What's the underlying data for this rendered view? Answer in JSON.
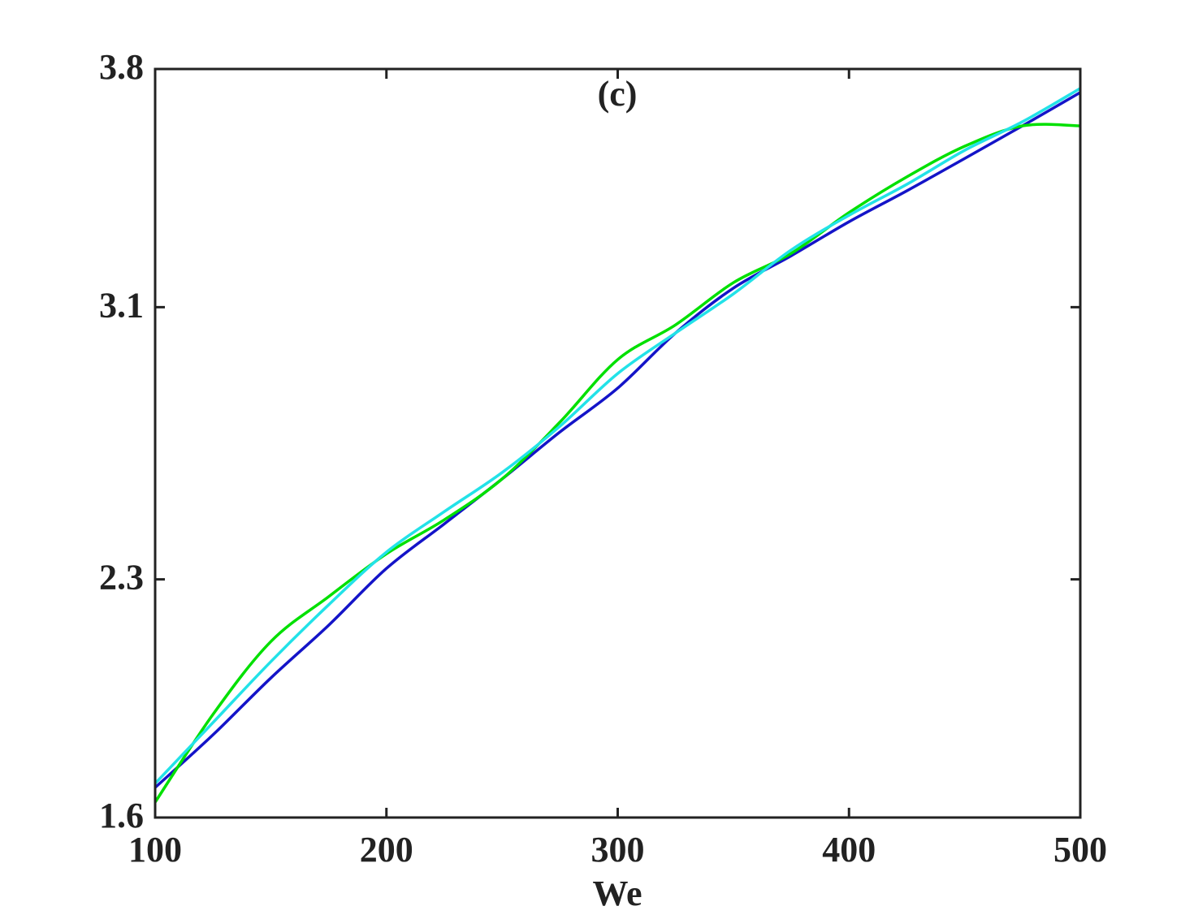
{
  "chart_data": {
    "type": "line",
    "title": "(c)",
    "x_label": "We",
    "x": [
      100,
      125,
      150,
      175,
      200,
      225,
      250,
      275,
      300,
      325,
      350,
      375,
      400,
      425,
      450,
      475,
      500
    ],
    "series": [
      {
        "color": "#1414c8",
        "values": [
          1.688,
          1.843,
          2.01,
          2.165,
          2.332,
          2.463,
          2.595,
          2.733,
          2.862,
          3.024,
          3.156,
          3.251,
          3.351,
          3.442,
          3.537,
          3.633,
          3.731
        ]
      },
      {
        "color": "#00e000",
        "values": [
          1.645,
          1.903,
          2.117,
          2.249,
          2.375,
          2.475,
          2.595,
          2.762,
          2.946,
          3.048,
          3.172,
          3.258,
          3.378,
          3.483,
          3.573,
          3.633,
          3.633
        ]
      },
      {
        "color": "#22e2e8",
        "values": [
          1.7,
          1.879,
          2.058,
          2.225,
          2.38,
          2.499,
          2.614,
          2.75,
          2.905,
          3.024,
          3.139,
          3.268,
          3.37,
          3.461,
          3.561,
          3.645,
          3.743
        ]
      }
    ],
    "xlim": [
      100,
      500
    ],
    "xticks": [
      100,
      200,
      300,
      400,
      500
    ],
    "ylim": [
      1.6,
      3.8
    ],
    "yticks": [
      1.6,
      2.3,
      3.1,
      3.8
    ]
  }
}
